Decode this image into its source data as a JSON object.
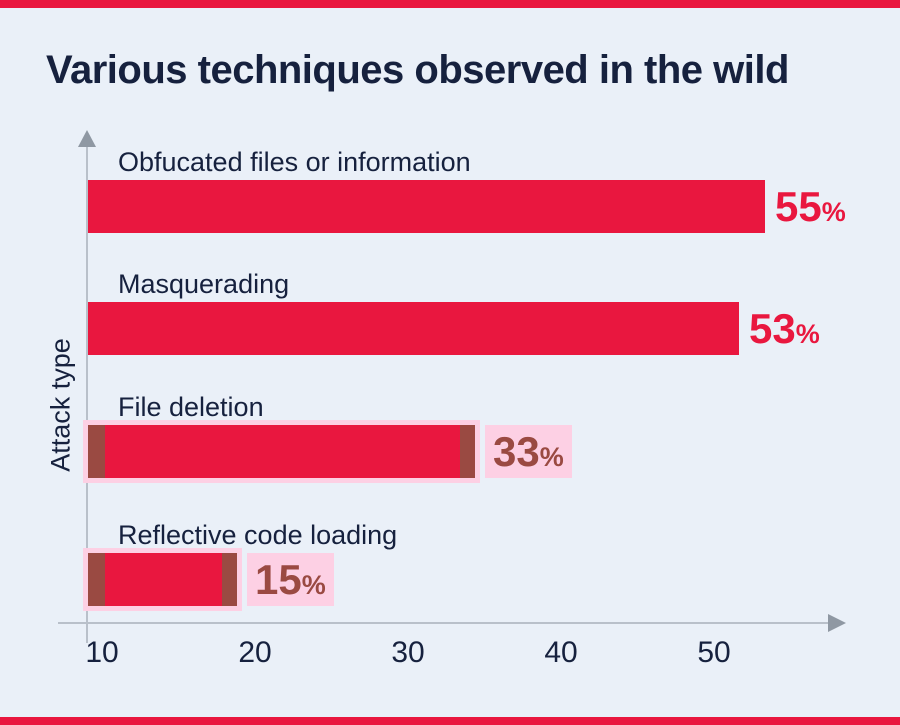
{
  "title": "Various techniques observed in the wild",
  "chart_data": {
    "type": "bar",
    "orientation": "horizontal",
    "title": "Various techniques observed in the wild",
    "xlabel": "",
    "ylabel": "Attack type",
    "categories": [
      "Obfucated files or information",
      "Masquerading",
      "File deletion",
      "Reflective code loading"
    ],
    "values": [
      55,
      53,
      33,
      15
    ],
    "value_labels": [
      "55",
      "53",
      "33",
      "15"
    ],
    "value_suffix": "%",
    "xticks": [
      "10",
      "20",
      "30",
      "40",
      "50"
    ],
    "xlim": [
      10,
      58
    ],
    "highlighted": [
      false,
      false,
      true,
      true
    ],
    "grid": false,
    "legend": false
  },
  "colors": {
    "background": "#eaf0f8",
    "bar": "#e9173f",
    "text_navy": "#16213e",
    "value_accent": "#e9173f",
    "value_muted": "#9a4a42",
    "highlight_pink": "#fdd0e4",
    "axis_line": "#b9c0ca",
    "axis_arrow": "#8f98a3",
    "accent_strip": "#e9173f"
  }
}
